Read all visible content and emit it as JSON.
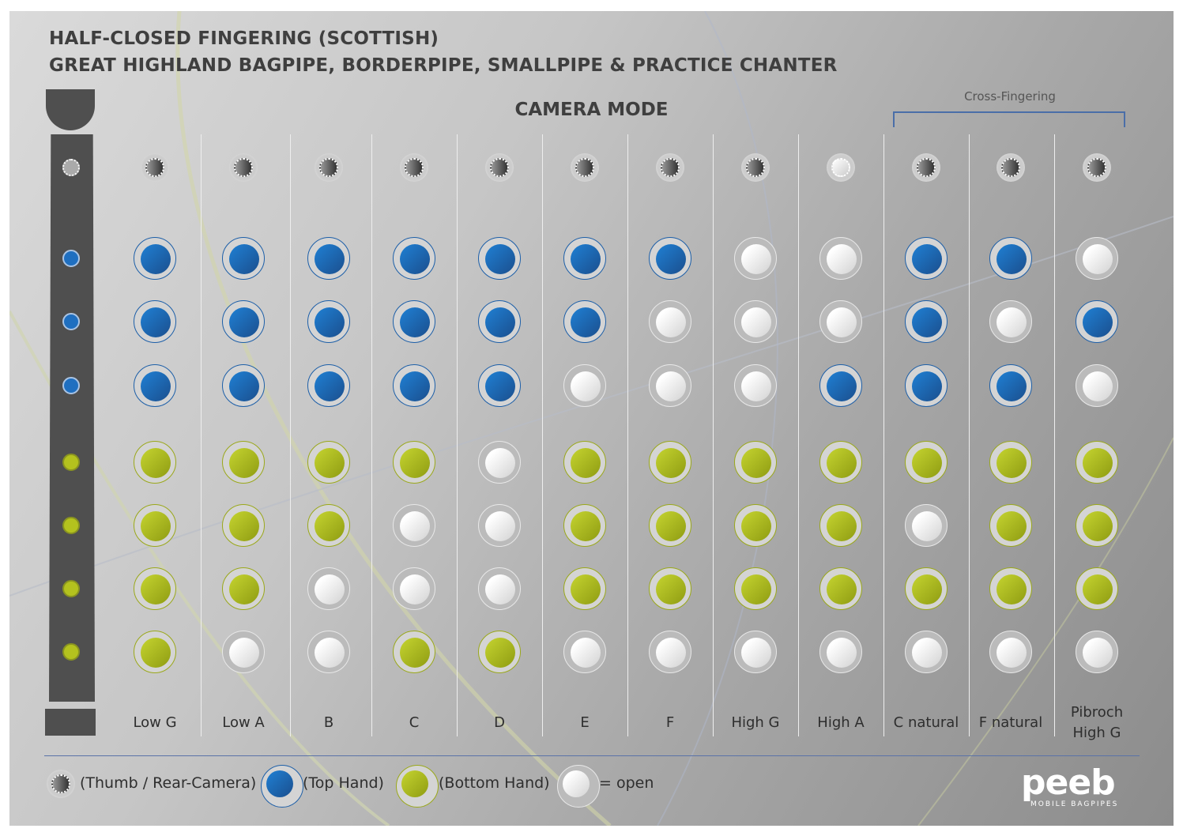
{
  "title_line1": "HALF-CLOSED FINGERING (SCOTTISH)",
  "title_line2": "GREAT HIGHLAND BAGPIPE, BORDERPIPE, SMALLPIPE & PRACTICE CHANTER",
  "mode": "CAMERA MODE",
  "cross_fingering_label": "Cross-Fingering",
  "colors": {
    "top_hand": "#1f6fc0",
    "bottom_hand": "#b4c21e",
    "thumb": "#555555",
    "open": "#f2f2f2",
    "chanter": "#4f4f4f"
  },
  "notes": [
    {
      "label": "Low G",
      "thumb": 1,
      "top": [
        1,
        1,
        1
      ],
      "bottom": [
        1,
        1,
        1,
        1
      ]
    },
    {
      "label": "Low A",
      "thumb": 1,
      "top": [
        1,
        1,
        1
      ],
      "bottom": [
        1,
        1,
        1,
        0
      ]
    },
    {
      "label": "B",
      "thumb": 1,
      "top": [
        1,
        1,
        1
      ],
      "bottom": [
        1,
        1,
        0,
        0
      ]
    },
    {
      "label": "C",
      "thumb": 1,
      "top": [
        1,
        1,
        1
      ],
      "bottom": [
        1,
        0,
        0,
        1
      ]
    },
    {
      "label": "D",
      "thumb": 1,
      "top": [
        1,
        1,
        1
      ],
      "bottom": [
        0,
        0,
        0,
        1
      ]
    },
    {
      "label": "E",
      "thumb": 1,
      "top": [
        1,
        1,
        0
      ],
      "bottom": [
        1,
        1,
        1,
        0
      ]
    },
    {
      "label": "F",
      "thumb": 1,
      "top": [
        1,
        0,
        0
      ],
      "bottom": [
        1,
        1,
        1,
        0
      ]
    },
    {
      "label": "High G",
      "thumb": 1,
      "top": [
        0,
        0,
        0
      ],
      "bottom": [
        1,
        1,
        1,
        0
      ]
    },
    {
      "label": "High A",
      "thumb": 0,
      "top": [
        0,
        0,
        1
      ],
      "bottom": [
        1,
        1,
        1,
        0
      ]
    },
    {
      "label": "C natural",
      "thumb": 1,
      "top": [
        1,
        1,
        1
      ],
      "bottom": [
        1,
        0,
        1,
        0
      ]
    },
    {
      "label": "F natural",
      "thumb": 1,
      "top": [
        1,
        0,
        1
      ],
      "bottom": [
        1,
        1,
        1,
        0
      ]
    },
    {
      "label": "Pibroch High G",
      "thumb": 1,
      "top": [
        0,
        1,
        0
      ],
      "bottom": [
        1,
        1,
        1,
        0
      ]
    }
  ],
  "legend": {
    "thumb": "(Thumb / Rear-Camera)",
    "top": "(Top Hand)",
    "bottom": "(Bottom Hand)",
    "open": "= open"
  },
  "logo": {
    "word": "peeb",
    "sub": "MOBILE BAGPIPES"
  }
}
